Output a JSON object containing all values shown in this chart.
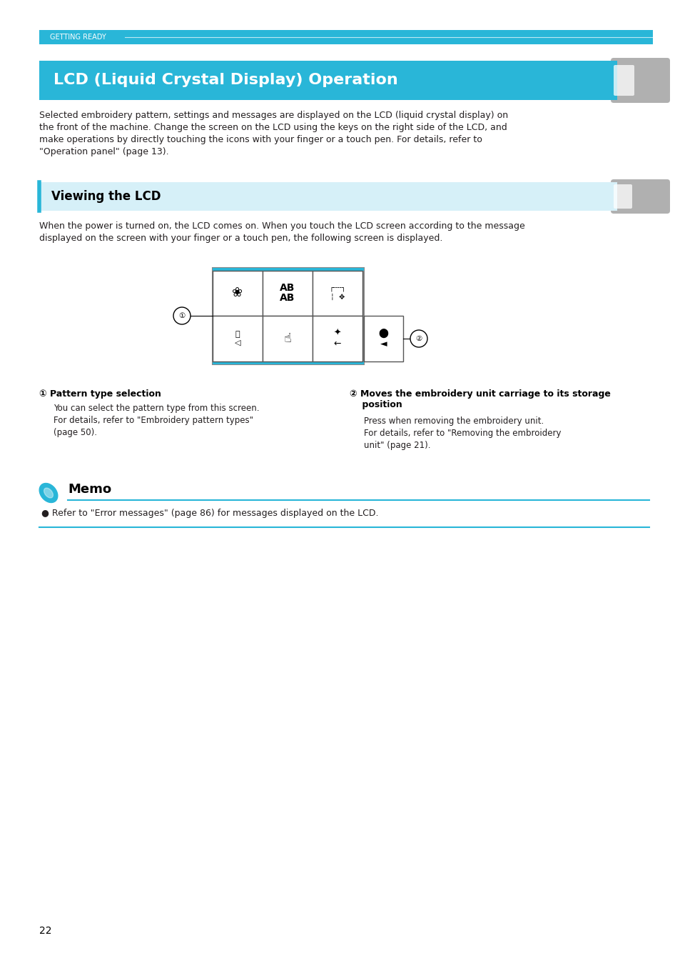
{
  "page_bg": "#ffffff",
  "top_banner_text": "GETTING READY",
  "main_title": "LCD (Liquid Crystal Display) Operation",
  "subheading": "Viewing the LCD",
  "body_text_1": "Selected embroidery pattern, settings and messages are displayed on the LCD (liquid crystal display) on\nthe front of the machine. Change the screen on the LCD using the keys on the right side of the LCD, and\nmake operations by directly touching the icons with your finger or a touch pen. For details, refer to\n\"Operation panel\" (page 13).",
  "body_text_2": "When the power is turned on, the LCD comes on. When you touch the LCD screen according to the message\ndisplayed on the screen with your finger or a touch pen, the following screen is displayed.",
  "callout1_title": "① Pattern type selection",
  "callout1_body": "You can select the pattern type from this screen.\nFor details, refer to \"Embroidery pattern types\"\n(page 50).",
  "callout2_title": "② Moves the embroidery unit carriage to its storage\n    position",
  "callout2_body": "Press when removing the embroidery unit.\nFor details, refer to \"Removing the embroidery\nunit\" (page 21).",
  "memo_title": "Memo",
  "memo_bullet": "● Refer to \"Error messages\" (page 86) for messages displayed on the LCD.",
  "page_number": "22",
  "cyan": "#29b6d8",
  "light_cyan_bg": "#d6f0f8",
  "text_color": "#231f20"
}
